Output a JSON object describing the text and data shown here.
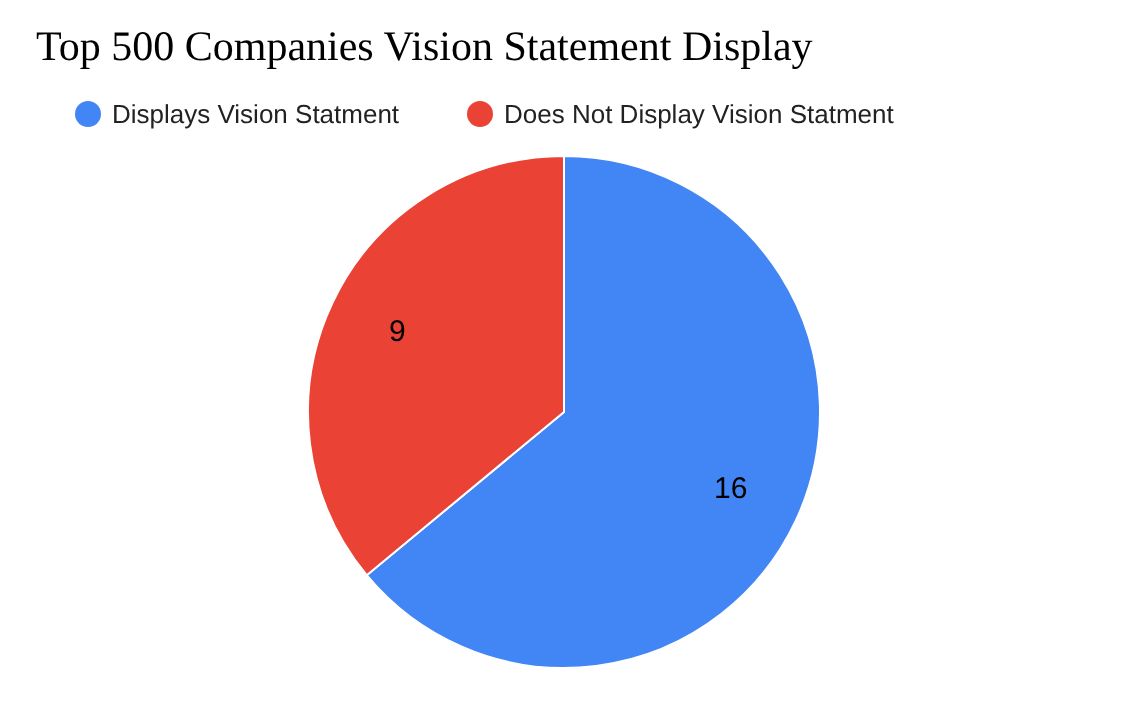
{
  "chart_data": {
    "type": "pie",
    "title": "Top 500 Companies Vision Statement Display",
    "categories": [
      "Displays Vision Statment",
      "Does Not Display Vision Statment"
    ],
    "values": [
      16,
      9
    ],
    "colors": [
      "#4285f4",
      "#ea4335"
    ],
    "data_labels": true,
    "legend": "top"
  }
}
